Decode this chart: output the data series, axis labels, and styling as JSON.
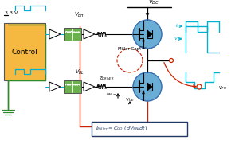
{
  "bg_color": "#ffffff",
  "fig_width": 3.0,
  "fig_height": 1.81,
  "dpi": 100,
  "colors": {
    "red": "#cc2200",
    "dark_blue": "#1f3864",
    "green": "#2e8b2e",
    "teal": "#00b0d0",
    "box_bg": "#f5b942",
    "transformer_bg": "#6ab04c",
    "igbt_bg": "#6aaed6",
    "formula_border": "#1f3864"
  }
}
